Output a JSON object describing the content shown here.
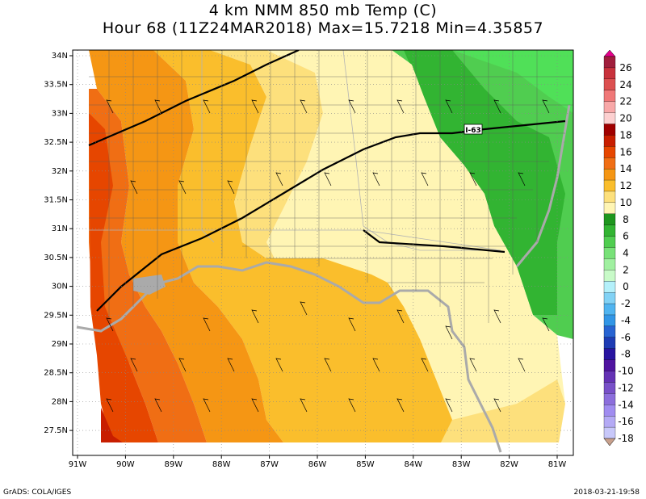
{
  "title": {
    "line1": "4 km NMM 850 mb Temp (C)",
    "line2": "Hour 68 (11Z24MAR2018) Max=15.7218 Min=4.35857"
  },
  "footer": {
    "left": "GrADS: COLA/IGES",
    "right": "2018-03-21-19:58"
  },
  "axes": {
    "lat_labels": [
      "34N",
      "33.5N",
      "33N",
      "32.5N",
      "32N",
      "31.5N",
      "31N",
      "30.5N",
      "30N",
      "29.5N",
      "29N",
      "28.5N",
      "28N",
      "27.5N"
    ],
    "lon_labels": [
      "91W",
      "90W",
      "89W",
      "88W",
      "87W",
      "86W",
      "85W",
      "84W",
      "83W",
      "82W",
      "81W"
    ]
  },
  "map_labels": {
    "interstate": "I-63"
  },
  "colorbar": {
    "labels": [
      "26",
      "24",
      "22",
      "20",
      "18",
      "16",
      "14",
      "12",
      "10",
      "8",
      "6",
      "4",
      "2",
      "0",
      "-2",
      "-4",
      "-6",
      "-8",
      "-10",
      "-12",
      "-14",
      "-16",
      "-18"
    ],
    "colors": [
      "#a01e3c",
      "#c8323c",
      "#dc5050",
      "#f07878",
      "#f8a8a8",
      "#fcd0d0",
      "#a00000",
      "#c81e00",
      "#e64600",
      "#f06e14",
      "#f59614",
      "#fabe2c",
      "#fde07c",
      "#fff5b4",
      "#1e961e",
      "#32b432",
      "#50cd50",
      "#78e178",
      "#a0f0a0",
      "#c8fac8",
      "#b4f0fa",
      "#82d2f5",
      "#50b4f0",
      "#3296e6",
      "#2864d2",
      "#1e3cb4",
      "#2814a0",
      "#5014a0",
      "#6432b4",
      "#7850c8",
      "#8c6edc",
      "#a08cf0",
      "#b4aaf5",
      "#c8c8fa"
    ],
    "top_arrow_color": "#e6008c",
    "bottom_arrow_color": "#c8a08c"
  }
}
